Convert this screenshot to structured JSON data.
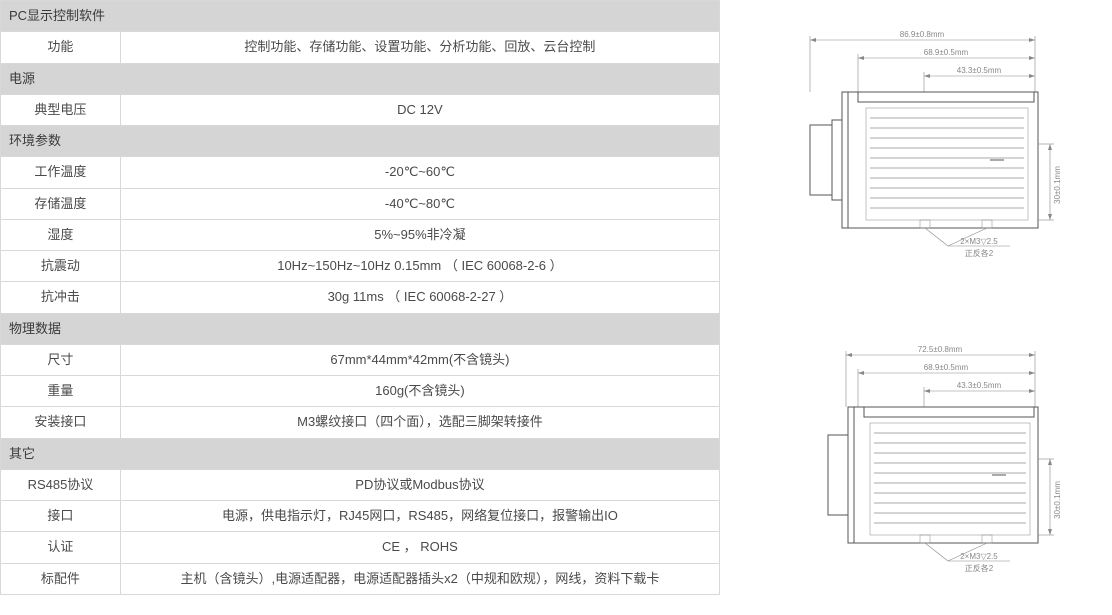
{
  "table": {
    "sections": [
      {
        "header": "PC显示控制软件",
        "rows": [
          {
            "label": "功能",
            "value": "控制功能、存储功能、设置功能、分析功能、回放、云台控制"
          }
        ]
      },
      {
        "header": "电源",
        "rows": [
          {
            "label": "典型电压",
            "value": "DC 12V"
          }
        ]
      },
      {
        "header": "环境参数",
        "rows": [
          {
            "label": "工作温度",
            "value": "-20℃~60℃"
          },
          {
            "label": "存储温度",
            "value": "-40℃~80℃"
          },
          {
            "label": "湿度",
            "value": "5%~95%非冷凝"
          },
          {
            "label": "抗震动",
            "value": "10Hz~150Hz~10Hz  0.15mm  （ IEC 60068-2-6 ）"
          },
          {
            "label": "抗冲击",
            "value": "30g 11ms （ IEC 60068-2-27 ）"
          }
        ]
      },
      {
        "header": "物理数据",
        "rows": [
          {
            "label": "尺寸",
            "value": "67mm*44mm*42mm(不含镜头)"
          },
          {
            "label": "重量",
            "value": "160g(不含镜头)"
          },
          {
            "label": "安装接口",
            "value": "M3螺纹接口（四个面），选配三脚架转接件"
          }
        ]
      },
      {
        "header": "其它",
        "rows": [
          {
            "label": "RS485协议",
            "value": "PD协议或Modbus协议"
          },
          {
            "label": "接口",
            "value": "电源，供电指示灯，RJ45网口，RS485，网络复位接口，报警输出IO"
          },
          {
            "label": "认证",
            "value": "CE ， ROHS"
          },
          {
            "label": "标配件",
            "value": "主机（含镜头）,电源适配器，电源适配器插头x2（中规和欧规），网线，资料下载卡"
          }
        ]
      }
    ]
  },
  "diagram_top": {
    "dims": {
      "d1": "86.9±0.8mm",
      "d2": "68.9±0.5mm",
      "d3": "43.3±0.5mm",
      "side": "30±0.1mm",
      "thread": "2×M3▽2.5",
      "note": "正反各2"
    }
  },
  "diagram_bottom": {
    "dims": {
      "d1": "72.5±0.8mm",
      "d2": "68.9±0.5mm",
      "d3": "43.3±0.5mm",
      "side": "30±0.1mm",
      "thread": "2×M3▽2.5",
      "note": "正反各2"
    }
  }
}
